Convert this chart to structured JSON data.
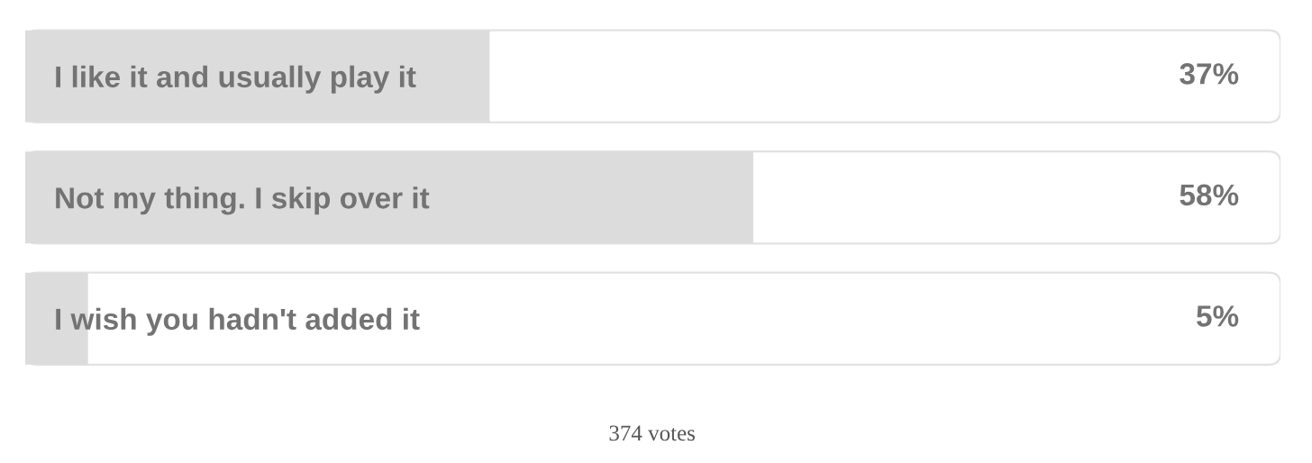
{
  "chart_data": {
    "type": "bar",
    "orientation": "horizontal",
    "categories": [
      "I like it and usually play it",
      "Not my thing. I skip over it",
      "I wish you hadn't added it"
    ],
    "values": [
      37,
      58,
      5
    ],
    "color": "#dcdcdc",
    "value_labels": [
      "37%",
      "58%",
      "5%"
    ],
    "xlim": [
      0,
      100
    ],
    "tick_labels": "y",
    "annotations": [
      "374 votes"
    ]
  }
}
